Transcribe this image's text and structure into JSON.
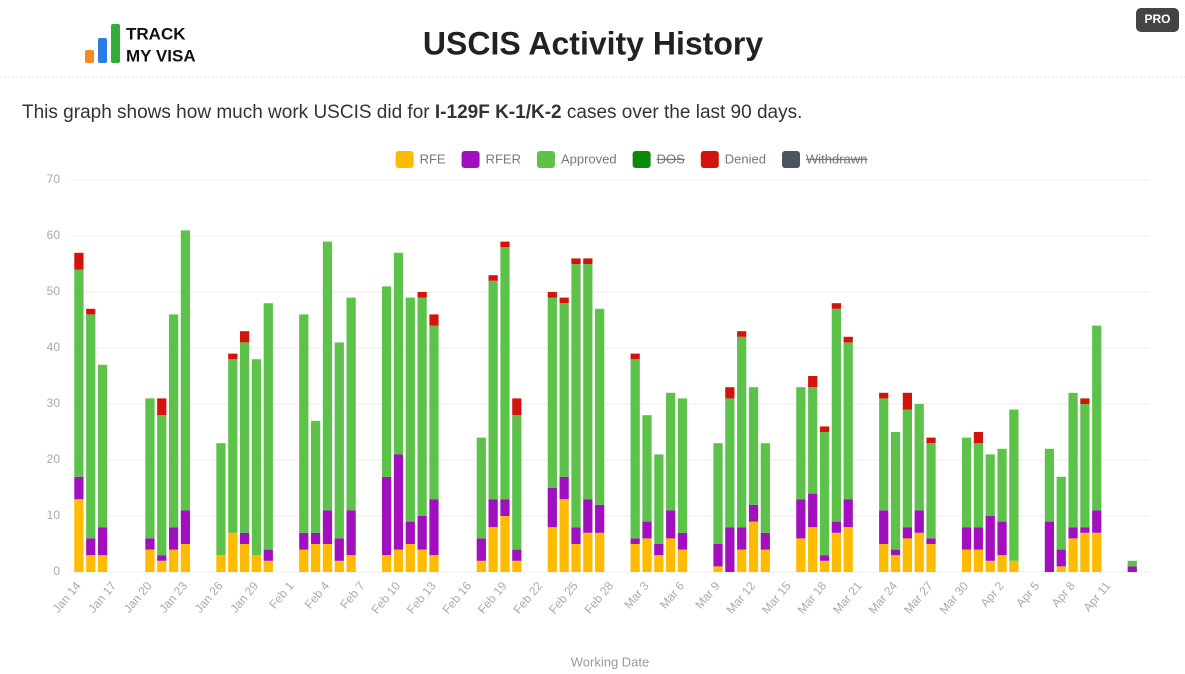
{
  "logo": {
    "line1": "TRACK",
    "line2": "MY VISA"
  },
  "badge": "PRO",
  "description": {
    "before": "This graph shows how much work USCIS did for ",
    "bold": "I-129F K-1/K-2",
    "after": " cases over the last 90 days."
  },
  "chart_data": {
    "type": "stacked-bar",
    "title": "USCIS Activity History",
    "x_label": "Working Date",
    "ylim": [
      0,
      70
    ],
    "yticks": [
      0,
      10,
      20,
      30,
      40,
      50,
      60,
      70
    ],
    "grid": true,
    "legend": "top",
    "categories": [
      "Jan 14",
      null,
      null,
      "Jan 17",
      null,
      null,
      "Jan 20",
      null,
      null,
      "Jan 23",
      null,
      null,
      "Jan 26",
      null,
      null,
      "Jan 29",
      null,
      null,
      "Feb 1",
      null,
      null,
      "Feb 4",
      null,
      null,
      "Feb 7",
      null,
      null,
      "Feb 10",
      null,
      null,
      "Feb 13",
      null,
      null,
      "Feb 16",
      null,
      null,
      "Feb 19",
      null,
      null,
      "Feb 22",
      null,
      null,
      "Feb 25",
      null,
      null,
      "Feb 28",
      null,
      null,
      "Mar 3",
      null,
      null,
      "Mar 6",
      null,
      null,
      "Mar 9",
      null,
      null,
      "Mar 12",
      null,
      null,
      "Mar 15",
      null,
      null,
      "Mar 18",
      null,
      null,
      "Mar 21",
      null,
      null,
      "Mar 24",
      null,
      null,
      "Mar 27",
      null,
      null,
      "Mar 30",
      null,
      null,
      "Apr 2",
      null,
      null,
      "Apr 5",
      null,
      null,
      "Apr 8",
      null,
      null,
      "Apr 11",
      null,
      null,
      null
    ],
    "series": [
      {
        "name": "RFE",
        "color": "#ffbb00",
        "hidden": false,
        "values": [
          13,
          3,
          3,
          null,
          null,
          null,
          4,
          2,
          4,
          5,
          null,
          null,
          3,
          7,
          5,
          3,
          2,
          null,
          null,
          4,
          5,
          5,
          2,
          3,
          null,
          null,
          3,
          4,
          5,
          4,
          3,
          null,
          null,
          null,
          2,
          8,
          10,
          2,
          null,
          null,
          8,
          13,
          5,
          7,
          7,
          null,
          null,
          5,
          6,
          3,
          6,
          4,
          null,
          null,
          1,
          0,
          4,
          9,
          4,
          null,
          null,
          6,
          8,
          2,
          7,
          8,
          null,
          null,
          5,
          3,
          6,
          7,
          5,
          null,
          null,
          4,
          4,
          2,
          3,
          2,
          null,
          null,
          0,
          1,
          6,
          7,
          7,
          null,
          null,
          0,
          null
        ]
      },
      {
        "name": "RFER",
        "color": "#a10fbf",
        "hidden": false,
        "values": [
          4,
          3,
          5,
          null,
          null,
          null,
          2,
          1,
          4,
          6,
          null,
          null,
          0,
          0,
          2,
          0,
          2,
          null,
          null,
          3,
          2,
          6,
          4,
          8,
          null,
          null,
          14,
          17,
          4,
          6,
          10,
          null,
          null,
          null,
          4,
          5,
          3,
          2,
          null,
          null,
          7,
          4,
          3,
          6,
          5,
          null,
          null,
          1,
          3,
          2,
          5,
          3,
          null,
          null,
          4,
          8,
          4,
          3,
          3,
          null,
          null,
          7,
          6,
          1,
          2,
          5,
          null,
          null,
          6,
          1,
          2,
          4,
          1,
          null,
          null,
          4,
          4,
          8,
          6,
          0,
          null,
          null,
          9,
          3,
          2,
          1,
          4,
          null,
          null,
          1,
          null
        ]
      },
      {
        "name": "Approved",
        "color": "#5cc24a",
        "hidden": false,
        "values": [
          37,
          40,
          29,
          null,
          null,
          null,
          25,
          25,
          38,
          50,
          null,
          null,
          20,
          31,
          34,
          35,
          44,
          null,
          null,
          39,
          20,
          48,
          35,
          38,
          null,
          null,
          34,
          36,
          40,
          39,
          31,
          null,
          null,
          null,
          18,
          39,
          45,
          24,
          null,
          null,
          34,
          31,
          47,
          42,
          35,
          null,
          null,
          32,
          19,
          16,
          21,
          24,
          null,
          null,
          18,
          23,
          34,
          21,
          16,
          null,
          null,
          20,
          19,
          22,
          38,
          28,
          null,
          null,
          20,
          21,
          21,
          19,
          17,
          null,
          null,
          16,
          15,
          11,
          13,
          27,
          null,
          null,
          13,
          13,
          24,
          22,
          33,
          null,
          null,
          1,
          null
        ]
      },
      {
        "name": "DOS",
        "color": "#0a8a0a",
        "hidden": true,
        "values": [
          null,
          null,
          null,
          null,
          null,
          null,
          null,
          null,
          null,
          null,
          null,
          null,
          null,
          null,
          null,
          null,
          null,
          null,
          null,
          null,
          null,
          null,
          null,
          null,
          null,
          null,
          null,
          null,
          null,
          null,
          null,
          null,
          null,
          null,
          null,
          null,
          null,
          null,
          null,
          null,
          null,
          null,
          null,
          null,
          null,
          null,
          null,
          null,
          null,
          null,
          null,
          null,
          null,
          null,
          null,
          null,
          null,
          null,
          null,
          null,
          null,
          null,
          null,
          null,
          null,
          null,
          null,
          null,
          null,
          null,
          null,
          null,
          null,
          null,
          null,
          null,
          null,
          null,
          null,
          null,
          null,
          null,
          null,
          null,
          null,
          null,
          null,
          null,
          null,
          null,
          null
        ]
      },
      {
        "name": "Denied",
        "color": "#d4140c",
        "hidden": false,
        "values": [
          3,
          1,
          0,
          null,
          null,
          null,
          0,
          3,
          0,
          0,
          null,
          null,
          0,
          1,
          2,
          0,
          0,
          null,
          null,
          0,
          0,
          0,
          0,
          0,
          null,
          null,
          0,
          0,
          0,
          1,
          2,
          null,
          null,
          null,
          0,
          1,
          1,
          3,
          null,
          null,
          1,
          1,
          1,
          1,
          0,
          null,
          null,
          1,
          0,
          0,
          0,
          0,
          null,
          null,
          0,
          2,
          1,
          0,
          0,
          null,
          null,
          0,
          2,
          1,
          1,
          1,
          null,
          null,
          1,
          0,
          3,
          0,
          1,
          null,
          null,
          0,
          2,
          0,
          0,
          0,
          null,
          null,
          0,
          0,
          0,
          1,
          0,
          null,
          null,
          0,
          null
        ]
      },
      {
        "name": "Withdrawn",
        "color": "#4a5560",
        "hidden": true,
        "values": [
          null,
          null,
          null,
          null,
          null,
          null,
          null,
          null,
          null,
          null,
          null,
          null,
          null,
          null,
          null,
          null,
          null,
          null,
          null,
          null,
          null,
          null,
          null,
          null,
          null,
          null,
          null,
          null,
          null,
          null,
          null,
          null,
          null,
          null,
          null,
          null,
          null,
          null,
          null,
          null,
          null,
          null,
          null,
          null,
          null,
          null,
          null,
          null,
          null,
          null,
          null,
          null,
          null,
          null,
          null,
          null,
          null,
          null,
          null,
          null,
          null,
          null,
          null,
          null,
          null,
          null,
          null,
          null,
          null,
          null,
          null,
          null,
          null,
          null,
          null,
          null,
          null,
          null,
          null,
          null,
          null,
          null,
          null,
          null,
          null,
          null,
          null,
          null,
          null,
          null,
          null
        ]
      }
    ]
  }
}
